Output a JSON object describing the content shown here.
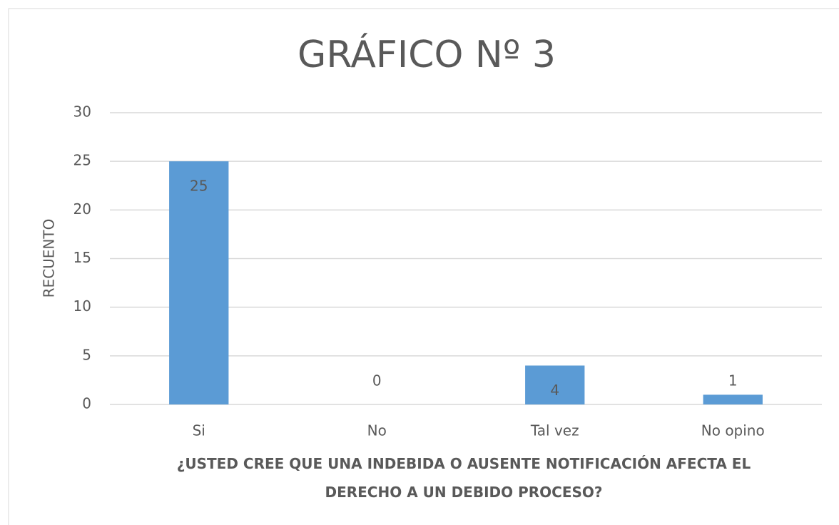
{
  "chart_data": {
    "type": "bar",
    "title": "GRÁFICO Nº 3",
    "y_label": "RECUENTO",
    "x_label": "¿USTED CREE QUE UNA INDEBIDA O AUSENTE NOTIFICACIÓN AFECTA EL DERECHO A UN DEBIDO PROCESO?",
    "categories": [
      "Si",
      "No",
      "Tal vez",
      "No opino"
    ],
    "values": [
      25,
      0,
      4,
      1
    ],
    "color": "#5b9bd5",
    "ylim": [
      0,
      30
    ],
    "yticks": [
      0,
      5,
      10,
      15,
      20,
      25,
      30
    ],
    "grid": true
  }
}
